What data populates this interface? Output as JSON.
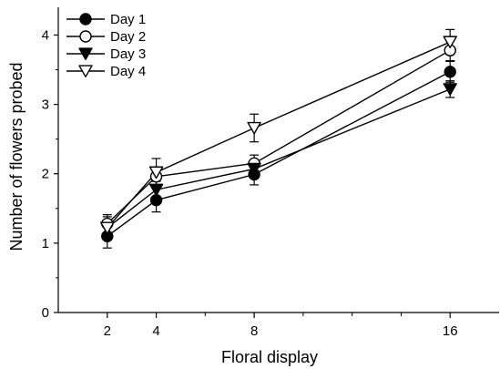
{
  "chart_data": {
    "type": "line",
    "xlabel": "Floral display",
    "ylabel": "Number of flowers probed",
    "x": [
      2,
      4,
      8,
      16
    ],
    "xticks": [
      2,
      4,
      8,
      16
    ],
    "xlim": [
      0,
      18
    ],
    "yticks": [
      0,
      1,
      2,
      3,
      4
    ],
    "ylim": [
      0,
      4.4
    ],
    "grid": false,
    "legend_position": "top-left",
    "series": [
      {
        "name": "Day 1",
        "marker": "filled-circle",
        "values": [
          1.1,
          1.62,
          1.99,
          3.47
        ],
        "errors": [
          0.17,
          0.17,
          0.15,
          0.15
        ]
      },
      {
        "name": "Day 2",
        "marker": "open-circle",
        "values": [
          1.28,
          1.96,
          2.15,
          3.78
        ],
        "errors": [
          0.13,
          0.12,
          0.12,
          0.15
        ]
      },
      {
        "name": "Day 3",
        "marker": "filled-triangle-down",
        "values": [
          1.22,
          1.77,
          2.07,
          3.22
        ],
        "errors": [
          0.1,
          0.12,
          0.12,
          0.12
        ]
      },
      {
        "name": "Day 4",
        "marker": "open-triangle-down",
        "values": [
          1.22,
          2.02,
          2.66,
          3.9
        ],
        "errors": [
          0.16,
          0.2,
          0.2,
          0.18
        ]
      }
    ]
  }
}
